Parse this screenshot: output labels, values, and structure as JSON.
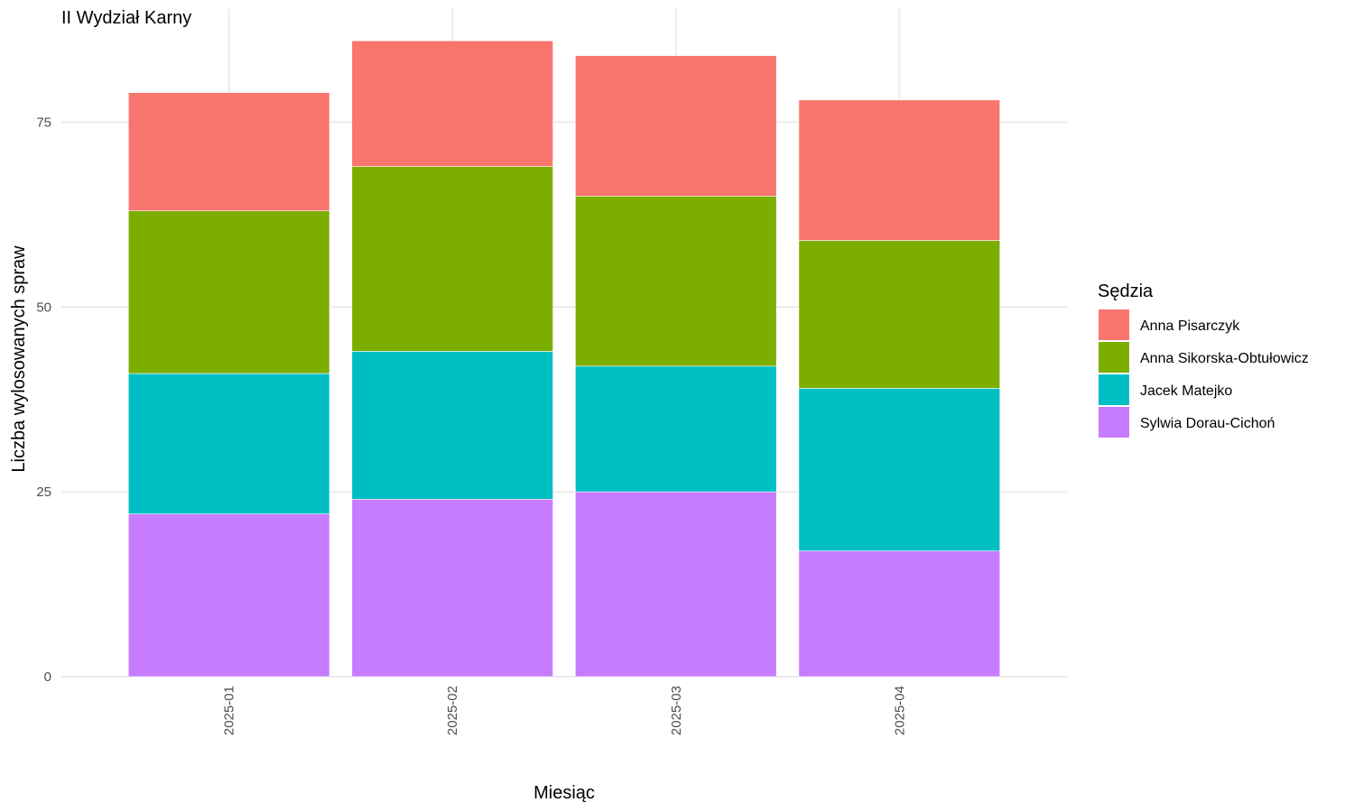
{
  "chart_data": {
    "type": "bar",
    "stacked": true,
    "title": "II Wydział Karny",
    "xlabel": "Miesiąc",
    "ylabel": "Liczba wylosowanych spraw",
    "categories": [
      "2025-01",
      "2025-02",
      "2025-03",
      "2025-04"
    ],
    "yticks": [
      0,
      25,
      50,
      75
    ],
    "ylim": [
      0,
      90
    ],
    "grid": true,
    "legend": {
      "title": "Sędzia",
      "position": "right"
    },
    "series": [
      {
        "name": "Sylwia Dorau-Cichoń",
        "color": "#C77CFF",
        "values": [
          22,
          24,
          25,
          17
        ]
      },
      {
        "name": "Jacek Matejko",
        "color": "#00BFC4",
        "values": [
          19,
          20,
          17,
          22
        ]
      },
      {
        "name": "Anna Sikorska-Obtułowicz",
        "color": "#7CAE00",
        "values": [
          22,
          25,
          23,
          20
        ]
      },
      {
        "name": "Anna Pisarczyk",
        "color": "#F8766D",
        "values": [
          16,
          17,
          19,
          19
        ]
      }
    ],
    "legend_order": [
      "Anna Pisarczyk",
      "Anna Sikorska-Obtułowicz",
      "Jacek Matejko",
      "Sylwia Dorau-Cichoń"
    ]
  }
}
